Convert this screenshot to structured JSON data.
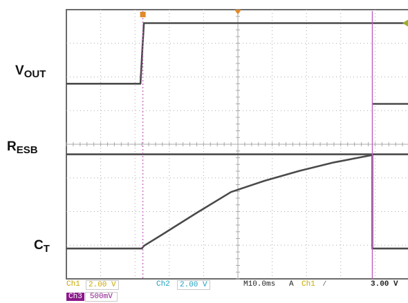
{
  "colors": {
    "trace": "#4a4a4a",
    "grid": "#a8a8a8",
    "frame": "#6a6a6a",
    "marker_trigger": "#e08a2a",
    "cursor_magenta": "#c060c0",
    "ch1": "#c8a800",
    "ch2": "#20a0c0",
    "ch3": "#8a1a8a"
  },
  "chart_data": {
    "type": "line",
    "description_units": "x in ms (10 ms/div, screen 0-100 ms); y in divisions (0 top, 8 bottom)",
    "xlim": [
      0,
      100
    ],
    "ylim": [
      0,
      8
    ],
    "grid": true,
    "series": [
      {
        "name": "VOUT",
        "points": [
          [
            0,
            2.2
          ],
          [
            21.6,
            2.2
          ],
          [
            22.2,
            1.1
          ],
          [
            22.6,
            0.4
          ],
          [
            100,
            0.4
          ]
        ]
      },
      {
        "name": "RESB",
        "points": [
          [
            0,
            4.3
          ],
          [
            100,
            4.3
          ]
        ]
      },
      {
        "name": "CT",
        "points": [
          [
            0,
            7.1
          ],
          [
            22.0,
            7.1
          ],
          [
            22.6,
            7.02
          ],
          [
            28,
            6.68
          ],
          [
            38,
            6.04
          ],
          [
            48,
            5.42
          ],
          [
            58,
            5.08
          ],
          [
            68,
            4.79
          ],
          [
            78,
            4.54
          ],
          [
            89.2,
            4.32
          ],
          [
            89.2,
            7.1
          ],
          [
            100,
            7.1
          ]
        ]
      }
    ],
    "upper_right_segment": {
      "series": "VOUT",
      "points": [
        [
          89.2,
          2.8
        ],
        [
          100,
          2.8
        ]
      ]
    },
    "cursors_ms": {
      "dotted": 22.3,
      "solid": 89.2
    },
    "trigger_marker_ms": 50
  },
  "labels": {
    "vout_main": "V",
    "vout_sub": "OUT",
    "resb_main": "R",
    "resb_sub": "ESB",
    "ct_main": "C",
    "ct_sub": "T"
  },
  "status": {
    "ch1_label": "Ch1",
    "ch1_value": "2.00 V",
    "ch2_label": "Ch2",
    "ch2_value": "2.00 V",
    "timebase": "M10.0ms",
    "trigger_mode": "A",
    "trigger_src": "Ch1",
    "trigger_slope": "∕",
    "trigger_level": "3.00 V",
    "ch3_label": "Ch3",
    "ch3_value": "500mV"
  }
}
